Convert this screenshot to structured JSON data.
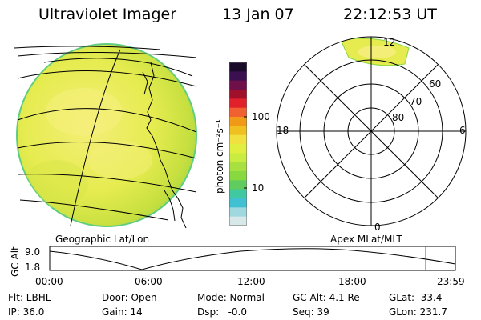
{
  "header": {
    "instrument": "Ultraviolet Imager",
    "date": "13 Jan 07",
    "time": "22:12:53 UT"
  },
  "colorbar": {
    "unit_label": "photon cm⁻²s⁻¹",
    "ticks": [
      "100",
      "10"
    ],
    "colors": [
      "#1a0a2a",
      "#3a1050",
      "#70104a",
      "#a0102a",
      "#e0202a",
      "#f06030",
      "#f09a18",
      "#f0c020",
      "#f0e040",
      "#e0ee40",
      "#c8ec40",
      "#a8e040",
      "#88d840",
      "#60cc60",
      "#40c8a0",
      "#40c0d0",
      "#a0d8e0",
      "#d8e8e8"
    ]
  },
  "globe_panel": {
    "caption": "Geographic Lat/Lon"
  },
  "polar_panel": {
    "caption": "Apex MLat/MLT",
    "lat_labels": [
      "60",
      "70",
      "80"
    ],
    "mlt_labels": {
      "top": "12",
      "left": "18",
      "right": "6",
      "bottom": "0"
    }
  },
  "altitude_plot": {
    "axis_title": "GC Alt",
    "y_labels": [
      "9.0",
      "1.8"
    ],
    "x_labels": [
      "00:00",
      "06:00",
      "12:00",
      "18:00",
      "23:59"
    ],
    "current_time_marker": "22:12:53",
    "marker_color": "#e02020"
  },
  "status": {
    "flt": "Flt: LBHL",
    "ip": "IP: 36.0",
    "door": "Door: Open",
    "gain": "Gain: 14",
    "mode": "Mode: Normal",
    "dsp": "Dsp:   -0.0",
    "gc_alt": "GC Alt: 4.1 Re",
    "seq": "Seq: 39",
    "glat": "GLat:  33.4",
    "glon": "GLon: 231.7"
  }
}
